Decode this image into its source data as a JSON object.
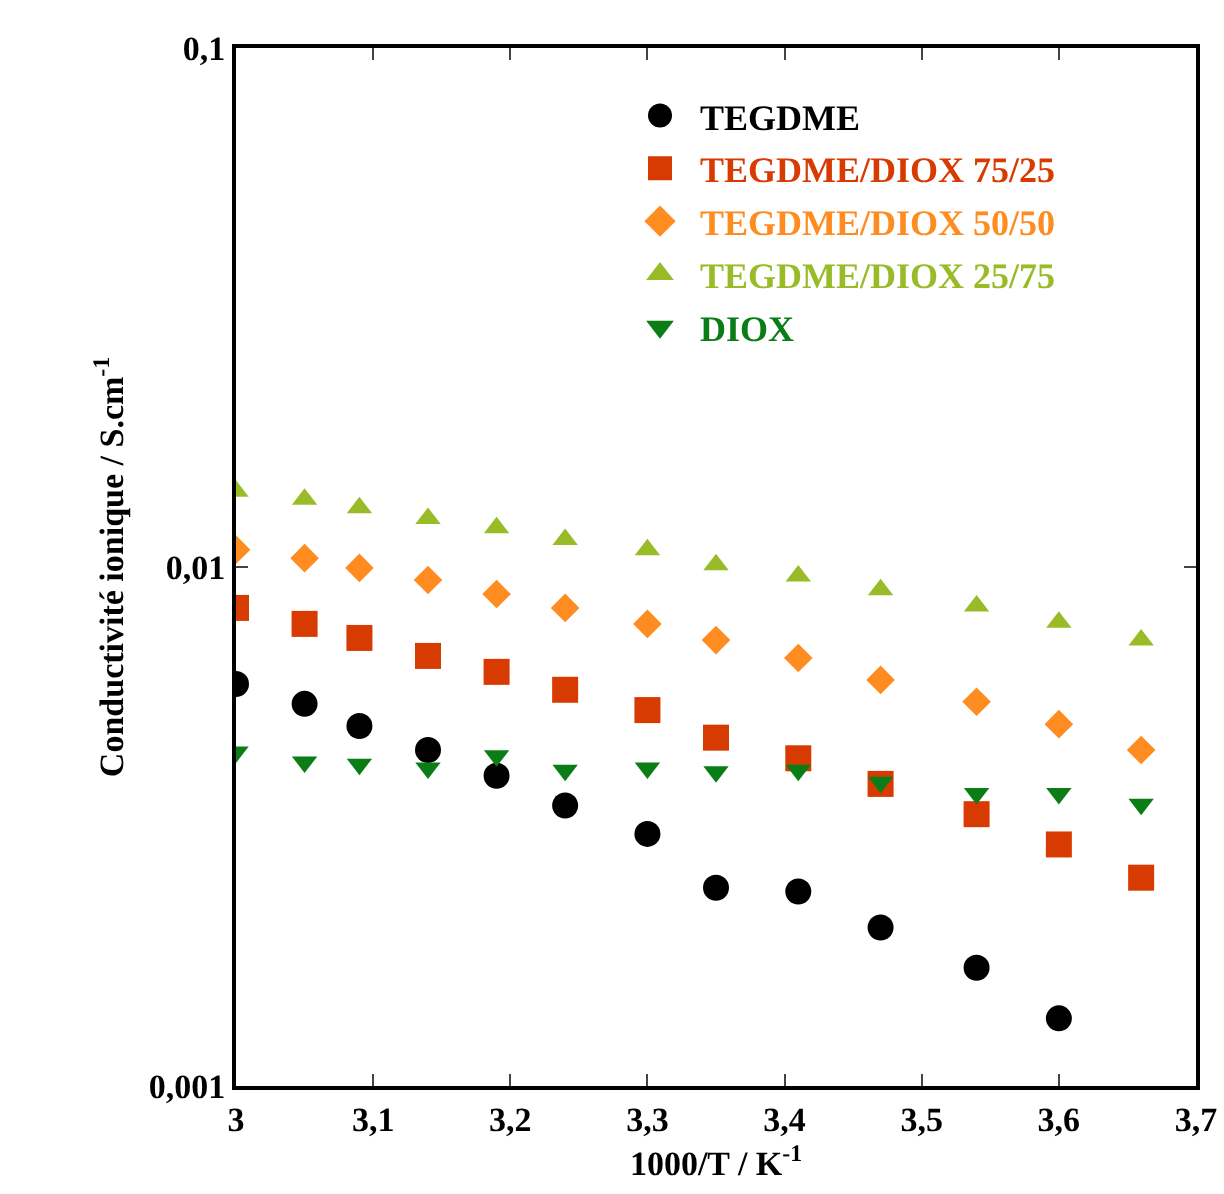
{
  "chart_data": {
    "type": "scatter",
    "xlabel": "1000/T / K$^{-1}$",
    "ylabel": "Conductivité ionique / S.cm$^{-1}$",
    "x": [
      3.0,
      3.05,
      3.09,
      3.14,
      3.19,
      3.24,
      3.3,
      3.35,
      3.41,
      3.47,
      3.54,
      3.6,
      3.66
    ],
    "series": [
      {
        "name": "TEGDME",
        "color": "#000000",
        "marker": "circle",
        "values": [
          0.00595,
          0.00545,
          0.00494,
          0.00444,
          0.00396,
          0.00347,
          0.00306,
          0.00241,
          0.00237,
          0.00202,
          0.00169,
          0.00135,
          null
        ]
      },
      {
        "name": "TEGDME/DIOX 75/25",
        "color": "#d83b01",
        "marker": "square",
        "values": [
          0.00834,
          0.00777,
          0.0073,
          0.00674,
          0.00628,
          0.0058,
          0.0053,
          0.00469,
          0.00428,
          0.00382,
          0.00334,
          0.00292,
          0.00252
        ]
      },
      {
        "name": "TEGDME/DIOX 50/50",
        "color": "#ff8c21",
        "marker": "diamond",
        "values": [
          0.0108,
          0.0104,
          0.00996,
          0.00944,
          0.00887,
          0.00834,
          0.00777,
          0.00723,
          0.00668,
          0.00606,
          0.0055,
          0.00498,
          0.00444
        ]
      },
      {
        "name": "TEGDME/DIOX 25/75",
        "color": "#99bb27",
        "marker": "triangle",
        "values": [
          0.014,
          0.0135,
          0.013,
          0.0124,
          0.0119,
          0.0113,
          0.0108,
          0.0101,
          0.00961,
          0.00904,
          0.00841,
          0.00783,
          0.00723
        ]
      },
      {
        "name": "DIOX",
        "color": "#0a7d16",
        "marker": "triangle-down",
        "values": [
          0.0044,
          0.00421,
          0.00417,
          0.0041,
          0.00433,
          0.00406,
          0.0041,
          0.00403,
          0.00406,
          0.00385,
          0.00366,
          0.00366,
          0.00349
        ]
      }
    ],
    "xlim": [
      3,
      3.7
    ],
    "xticks": [
      {
        "value": 3,
        "label": "3"
      },
      {
        "value": 3.1,
        "label": "3,1"
      },
      {
        "value": 3.2,
        "label": "3,2"
      },
      {
        "value": 3.3,
        "label": "3,3"
      },
      {
        "value": 3.4,
        "label": "3,4"
      },
      {
        "value": 3.5,
        "label": "3,5"
      },
      {
        "value": 3.6,
        "label": "3,6"
      },
      {
        "value": 3.7,
        "label": "3,7"
      }
    ],
    "ylim": [
      0.001,
      0.1
    ],
    "yticks": [
      {
        "value": 0.001,
        "label": "0,001"
      },
      {
        "value": 0.01,
        "label": "0,01"
      },
      {
        "value": 0.1,
        "label": "0,1"
      }
    ],
    "log": "y",
    "grid": false,
    "legend": "top right"
  }
}
